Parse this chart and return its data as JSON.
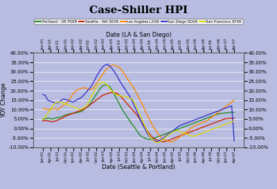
{
  "title": "Case-Shiller HPI",
  "xlabel_top": "Date (LA & San Diego)",
  "xlabel_bottom": "Date (Seattle & Portland)",
  "ylabel": "YOY Change",
  "ylim": [
    -0.1,
    0.4
  ],
  "yticks": [
    -0.1,
    -0.05,
    0.0,
    0.05,
    0.1,
    0.15,
    0.2,
    0.25,
    0.3,
    0.35,
    0.4
  ],
  "background_color": "#b8bce0",
  "plot_bg_color": "#b8bce0",
  "grid_color": "#ffffff",
  "legend": [
    {
      "label": "Portland - OR POXR",
      "color": "#228B22"
    },
    {
      "label": "Seattle - WA SEXR",
      "color": "#cc2200"
    },
    {
      "label": "Los Angeles LXXR",
      "color": "#ff8800"
    },
    {
      "label": "San Diego SDXR",
      "color": "#3333cc"
    },
    {
      "label": "San Francisco SFXR",
      "color": "#dddd00"
    }
  ],
  "tick_labels": [
    "Jan-01",
    "Apr-01",
    "Jul-01",
    "Oct-01",
    "Jan-02",
    "Apr-02",
    "Jul-02",
    "Oct-02",
    "Jan-03",
    "Apr-03",
    "Jul-03",
    "Oct-03",
    "Jan-04",
    "Apr-04",
    "Jul-04",
    "Oct-04",
    "Jan-05",
    "Apr-05",
    "Jul-05",
    "Oct-05",
    "Jan-06",
    "Apr-06",
    "Jul-06",
    "Oct-06",
    "Jan-07",
    "Apr-07"
  ],
  "portland": [
    5.0,
    5.2,
    5.5,
    5.3,
    5.0,
    5.5,
    5.8,
    6.0,
    6.5,
    7.0,
    7.5,
    7.8,
    8.0,
    8.2,
    8.5,
    8.8,
    9.5,
    10.5,
    11.5,
    13.0,
    15.0,
    17.0,
    19.0,
    21.0,
    22.5,
    23.0,
    23.0,
    22.0,
    20.0,
    17.5,
    15.0,
    12.5,
    10.0,
    8.0,
    6.0,
    4.0,
    2.0,
    0.5,
    -1.5,
    -3.5,
    -4.5,
    -5.0,
    -5.5,
    -5.8,
    -5.5,
    -5.0,
    -4.5,
    -4.0,
    -3.5,
    -3.0,
    -2.5,
    -2.0,
    -1.5,
    -1.0,
    -0.5,
    0.0,
    0.5,
    1.0,
    1.5,
    2.0,
    2.5,
    3.0,
    3.5,
    4.0,
    4.5,
    5.0,
    5.5,
    6.0,
    6.5,
    7.0,
    7.5,
    7.8,
    8.0,
    8.2,
    8.3,
    8.5,
    8.5,
    8.5
  ],
  "seattle": [
    4.0,
    4.3,
    4.0,
    3.8,
    3.5,
    4.0,
    4.5,
    5.0,
    5.5,
    6.5,
    7.0,
    7.5,
    8.0,
    8.5,
    9.0,
    9.5,
    10.0,
    10.5,
    11.5,
    12.5,
    13.5,
    14.5,
    15.5,
    16.5,
    17.5,
    18.0,
    18.5,
    19.0,
    19.0,
    19.0,
    18.5,
    17.5,
    16.0,
    14.5,
    13.0,
    11.5,
    10.0,
    8.5,
    7.0,
    5.0,
    3.0,
    1.0,
    -1.0,
    -3.0,
    -4.5,
    -5.5,
    -6.0,
    -6.5,
    -7.0,
    -7.0,
    -6.5,
    -6.0,
    -5.5,
    -5.0,
    -4.5,
    -4.0,
    -3.5,
    -3.0,
    -2.5,
    -2.0,
    -1.5,
    -1.0,
    -0.5,
    0.0,
    0.5,
    1.0,
    1.5,
    2.0,
    2.5,
    3.0,
    3.5,
    4.0,
    4.5,
    5.0,
    5.2,
    5.3,
    5.5,
    5.5
  ],
  "losangeles": [
    10.5,
    10.5,
    10.0,
    10.0,
    10.5,
    10.5,
    10.0,
    11.0,
    12.0,
    13.0,
    14.0,
    16.0,
    18.0,
    19.5,
    20.5,
    21.0,
    21.5,
    21.5,
    21.0,
    20.5,
    21.0,
    22.5,
    24.5,
    26.5,
    28.5,
    30.5,
    32.0,
    33.0,
    33.5,
    33.5,
    33.0,
    32.0,
    30.5,
    28.5,
    26.5,
    24.5,
    22.5,
    20.5,
    18.0,
    15.5,
    13.0,
    10.0,
    7.0,
    4.5,
    2.0,
    0.0,
    -2.0,
    -4.0,
    -5.5,
    -6.0,
    -6.5,
    -7.0,
    -7.0,
    -6.5,
    -5.5,
    -4.5,
    -3.5,
    -2.5,
    -1.5,
    -0.5,
    0.5,
    1.5,
    2.0,
    2.5,
    3.0,
    3.5,
    4.0,
    5.0,
    6.0,
    7.0,
    8.0,
    9.0,
    10.0,
    11.0,
    12.0,
    13.0,
    14.0,
    15.0
  ],
  "sandiego": [
    18.0,
    17.5,
    15.0,
    14.5,
    14.0,
    13.5,
    13.5,
    14.5,
    15.5,
    15.5,
    15.0,
    14.5,
    14.0,
    14.5,
    15.5,
    16.0,
    17.0,
    18.5,
    20.0,
    21.5,
    23.5,
    26.0,
    28.5,
    30.5,
    32.5,
    33.5,
    34.0,
    33.0,
    31.5,
    29.5,
    27.5,
    25.0,
    23.0,
    21.0,
    19.0,
    17.0,
    14.5,
    11.5,
    8.5,
    5.5,
    2.5,
    0.0,
    -2.5,
    -4.5,
    -6.0,
    -6.5,
    -7.0,
    -6.5,
    -5.5,
    -4.5,
    -3.5,
    -2.5,
    -1.5,
    -0.5,
    0.5,
    1.5,
    2.0,
    2.5,
    3.0,
    3.5,
    4.0,
    4.5,
    5.0,
    5.5,
    6.0,
    6.5,
    7.0,
    7.5,
    8.0,
    8.5,
    9.0,
    9.5,
    10.0,
    10.5,
    11.0,
    11.5,
    12.0,
    -6.5
  ],
  "sanfrancisco": [
    5.0,
    6.0,
    8.0,
    10.0,
    12.0,
    13.5,
    14.0,
    14.0,
    13.5,
    13.0,
    12.5,
    12.0,
    11.5,
    11.0,
    10.5,
    10.0,
    10.5,
    11.5,
    13.0,
    15.5,
    18.0,
    20.5,
    22.5,
    24.0,
    24.5,
    24.0,
    23.0,
    21.0,
    19.5,
    18.5,
    17.5,
    17.5,
    17.0,
    17.0,
    16.5,
    16.0,
    15.5,
    13.5,
    10.5,
    7.5,
    4.5,
    1.5,
    -1.5,
    -4.0,
    -6.0,
    -7.0,
    -7.5,
    -7.0,
    -6.0,
    -5.0,
    -4.0,
    -3.0,
    -2.0,
    -1.5,
    -1.0,
    -1.5,
    -2.0,
    -2.5,
    -3.0,
    -3.5,
    -4.0,
    -4.0,
    -3.5,
    -3.0,
    -2.5,
    -2.0,
    -1.5,
    -1.0,
    -0.5,
    0.0,
    0.5,
    1.0,
    1.5,
    2.0,
    2.5,
    3.0,
    3.5,
    4.0
  ]
}
